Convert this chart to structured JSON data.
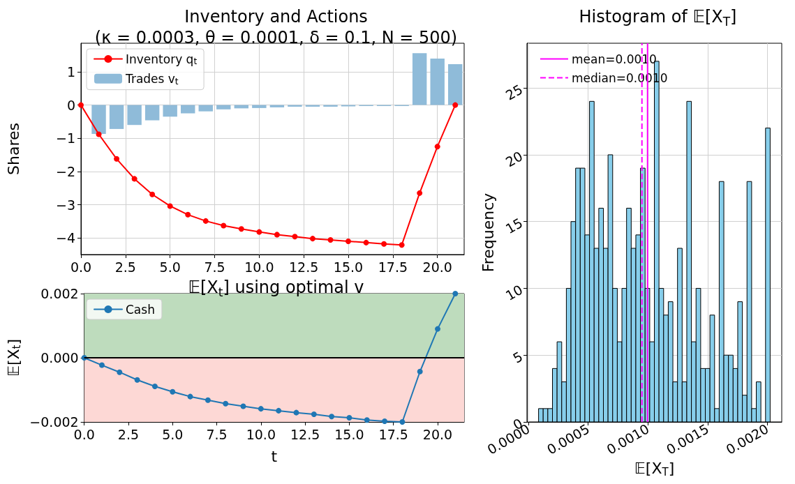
{
  "chart_data": [
    {
      "type": "line",
      "title": "Inventory and Actions\n(κ = 0.0003, θ = 0.0001, δ = 0.1, N = 500)",
      "ylabel": "Shares",
      "series": [
        {
          "name": "Inventory q$_{t}$",
          "type": "line",
          "color": "#ff0000",
          "x": [
            0,
            1,
            2,
            3,
            4,
            5,
            6,
            7,
            8,
            9,
            10,
            11,
            12,
            13,
            14,
            15,
            16,
            17,
            18,
            19,
            20,
            21
          ],
          "values": [
            0,
            -0.88,
            -1.62,
            -2.22,
            -2.69,
            -3.04,
            -3.3,
            -3.49,
            -3.63,
            -3.73,
            -3.82,
            -3.9,
            -3.96,
            -4.02,
            -4.06,
            -4.1,
            -4.14,
            -4.18,
            -4.21,
            -2.65,
            -1.25,
            0
          ]
        },
        {
          "name": "Trades v$_{t}$",
          "type": "bar",
          "color": "#8fbbd9",
          "x": [
            1,
            2,
            3,
            4,
            5,
            6,
            7,
            8,
            9,
            10,
            11,
            12,
            13,
            14,
            15,
            16,
            17,
            18,
            19,
            20,
            21
          ],
          "values": [
            -0.87,
            -0.72,
            -0.6,
            -0.46,
            -0.35,
            -0.25,
            -0.19,
            -0.13,
            -0.1,
            -0.09,
            -0.07,
            -0.05,
            -0.05,
            -0.05,
            -0.04,
            -0.03,
            -0.03,
            -0.03,
            1.56,
            1.4,
            1.23
          ]
        }
      ],
      "xlim": [
        0,
        21.5
      ],
      "xticks": [
        {
          "value": 0,
          "label": "0.0"
        },
        {
          "value": 2.5,
          "label": "2.5"
        },
        {
          "value": 5,
          "label": "5.0"
        },
        {
          "value": 7.5,
          "label": "7.5"
        },
        {
          "value": 10,
          "label": "10.0"
        },
        {
          "value": 12.5,
          "label": "12.5"
        },
        {
          "value": 15,
          "label": "15.0"
        },
        {
          "value": 17.5,
          "label": "17.5"
        },
        {
          "value": 20,
          "label": "20.0"
        }
      ],
      "ylim": [
        -4.5,
        1.86
      ],
      "yticks": [
        {
          "value": -4,
          "label": "−4"
        },
        {
          "value": -3,
          "label": "−3"
        },
        {
          "value": -2,
          "label": "−2"
        },
        {
          "value": -1,
          "label": "−1"
        },
        0,
        1
      ],
      "marker": "circle",
      "grid": true,
      "legend": "top left"
    },
    {
      "type": "line",
      "title": "𝔼[X$_{t}$] using optimal v",
      "xlabel": "t",
      "ylabel": "𝔼[X$_{t}$]",
      "series": [
        {
          "name": "Cash",
          "color": "#1f77b4",
          "x": [
            0,
            1,
            2,
            3,
            4,
            5,
            6,
            7,
            8,
            9,
            10,
            11,
            12,
            13,
            14,
            15,
            16,
            17,
            18,
            19,
            20,
            21
          ],
          "values": [
            0,
            -0.00023,
            -0.00045,
            -0.00069,
            -0.00089,
            -0.00106,
            -0.00121,
            -0.00132,
            -0.00143,
            -0.00151,
            -0.00159,
            -0.00165,
            -0.00171,
            -0.00176,
            -0.00183,
            -0.00187,
            -0.00194,
            -0.00198,
            -0.002,
            -0.00043,
            0.0009,
            0.002
          ]
        }
      ],
      "xlim": [
        0,
        21.5
      ],
      "xticks": [
        {
          "value": 0,
          "label": "0.0"
        },
        {
          "value": 2.5,
          "label": "2.5"
        },
        {
          "value": 5,
          "label": "5.0"
        },
        {
          "value": 7.5,
          "label": "7.5"
        },
        {
          "value": 10,
          "label": "10.0"
        },
        {
          "value": 12.5,
          "label": "12.5"
        },
        {
          "value": 15,
          "label": "15.0"
        },
        {
          "value": 17.5,
          "label": "17.5"
        },
        {
          "value": 20,
          "label": "20.0"
        }
      ],
      "ylim": [
        -0.002,
        0.002
      ],
      "yticks": [
        {
          "value": -0.002,
          "label": "−0.002"
        },
        {
          "value": 0,
          "label": "0.000"
        },
        {
          "value": 0.002,
          "label": "0.002"
        }
      ],
      "bands": [
        {
          "axis": "y",
          "from": 0,
          "to": 0.002,
          "color": "#bedcbd"
        },
        {
          "axis": "y",
          "from": -0.002,
          "to": 0,
          "color": "#fdd8d5"
        }
      ],
      "ref_lines": [
        {
          "axis": "y",
          "value": 0,
          "color": "#000000"
        }
      ],
      "marker": "circle",
      "grid": "x",
      "legend": "top left"
    },
    {
      "type": "histogram",
      "title": "Histogram of 𝔼[X$_{T}$]",
      "xlabel": "𝔼[X$_{T}$]",
      "ylabel": "Frequency",
      "color": "#87ceeb",
      "bins": [
        8.4e-05,
        0.0001228,
        0.0001616,
        0.0002004,
        0.0002392,
        0.000278,
        0.0003168,
        0.0003556,
        0.0003944,
        0.0004332,
        0.000472,
        0.0005108,
        0.0005496,
        0.0005884,
        0.0006272,
        0.000666,
        0.0007048,
        0.0007436,
        0.0007824,
        0.0008212,
        0.00086,
        0.0008988,
        0.0009376,
        0.0009764,
        0.0010152,
        0.001054,
        0.0010928,
        0.0011316,
        0.0011704,
        0.0012092,
        0.001248,
        0.0012868,
        0.0013256,
        0.0013644,
        0.0014032,
        0.001442,
        0.0014808,
        0.0015196,
        0.0015584,
        0.0015972,
        0.001636,
        0.0016748,
        0.0017136,
        0.0017524,
        0.0017912,
        0.00183,
        0.0018688,
        0.0019076,
        0.0019464,
        0.0019852,
        0.002024
      ],
      "values": [
        1,
        1,
        1,
        4,
        6,
        3,
        10,
        15,
        19,
        19,
        14,
        24,
        13,
        16,
        13,
        20,
        10,
        6,
        10,
        16,
        13,
        14,
        19,
        10,
        6,
        27,
        10,
        8,
        9,
        3,
        13,
        3,
        24,
        6,
        10,
        4,
        4,
        8,
        1,
        18,
        5,
        5,
        4,
        9,
        2,
        18,
        1,
        3,
        0,
        22
      ],
      "xlim": [
        -1.3e-05,
        0.002121
      ],
      "xticks": [
        {
          "value": 0,
          "label": "0.0000"
        },
        {
          "value": 0.0005,
          "label": "0.0005"
        },
        {
          "value": 0.001,
          "label": "0.0010"
        },
        {
          "value": 0.0015,
          "label": "0.0015"
        },
        {
          "value": 0.002,
          "label": "0.0020"
        }
      ],
      "ylim": [
        0,
        28.35
      ],
      "yticks": [
        0,
        5,
        10,
        15,
        20,
        25
      ],
      "ref_lines": [
        {
          "axis": "x",
          "value": 0.000997,
          "label": "mean=0.0010",
          "color": "#ff00ff",
          "line_style": "solid"
        },
        {
          "axis": "x",
          "value": 0.00095,
          "label": "median=0.0010",
          "color": "#ff00ff",
          "line_style": "dashed"
        }
      ],
      "grid": true,
      "legend": "top left"
    }
  ]
}
